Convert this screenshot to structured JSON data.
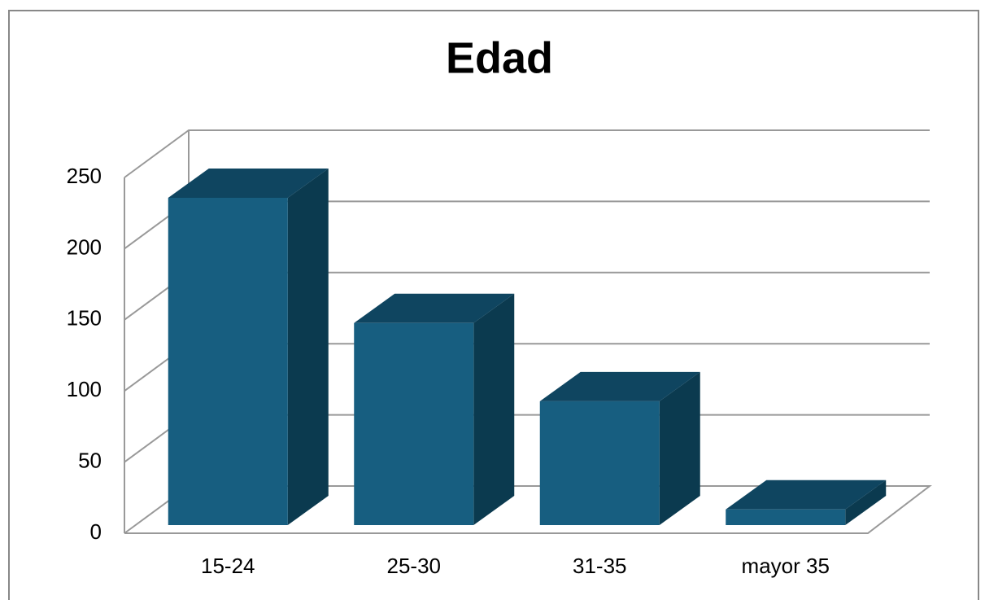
{
  "chart_data": {
    "type": "bar3d",
    "title": "Edad",
    "categories": [
      "15-24",
      "25-30",
      "31-35",
      "mayor 35"
    ],
    "values": [
      230,
      142,
      87,
      11
    ],
    "color": "#175e80",
    "ylim": [
      0,
      250
    ],
    "yticks": [
      0,
      50,
      100,
      150,
      200,
      250
    ],
    "grid": true
  }
}
